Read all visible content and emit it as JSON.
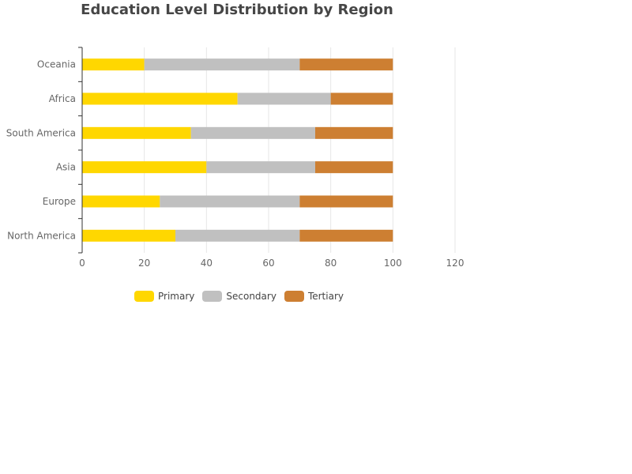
{
  "chart_data": {
    "type": "bar",
    "orientation": "horizontal",
    "stacked": true,
    "title": "Education Level Distribution by Region",
    "xlabel": "",
    "ylabel": "",
    "categories": [
      "North America",
      "Europe",
      "Asia",
      "South America",
      "Africa",
      "Oceania"
    ],
    "series": [
      {
        "name": "Primary",
        "color": "#FFD700",
        "values": [
          30,
          25,
          40,
          35,
          50,
          20
        ]
      },
      {
        "name": "Secondary",
        "color": "#C0C0C0",
        "values": [
          40,
          45,
          35,
          40,
          30,
          50
        ]
      },
      {
        "name": "Tertiary",
        "color": "#CD7F32",
        "values": [
          30,
          30,
          25,
          25,
          20,
          30
        ]
      }
    ],
    "xlim": [
      0,
      120
    ],
    "xticks": [
      "0",
      "20",
      "40",
      "60",
      "80",
      "100",
      "120"
    ],
    "grid": true,
    "legend_position": "bottom"
  }
}
